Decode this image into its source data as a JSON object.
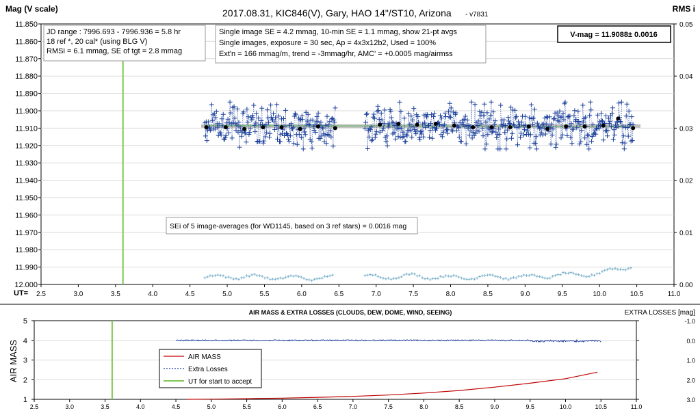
{
  "top": {
    "title": "2017.08.31,  KIC846(V),  Gary,  HAO 14\"/ST10, Arizona",
    "version": "- v7831",
    "ylabel_left": "Mag (V scale)",
    "ylabel_right": "RMS i",
    "xlabel_prefix": "UT=",
    "x_ticks": [
      "2.5",
      "3.0",
      "3.5",
      "4.0",
      "4.5",
      "5.0",
      "5.5",
      "6.0",
      "6.5",
      "7.0",
      "7.5",
      "8.0",
      "8.5",
      "9.0",
      "9.5",
      "10.0",
      "10.5",
      "11.0"
    ],
    "y_ticks": [
      "11.850",
      "11.860",
      "11.870",
      "11.880",
      "11.890",
      "11.900",
      "11.910",
      "11.920",
      "11.930",
      "11.940",
      "11.950",
      "11.960",
      "11.970",
      "11.980",
      "11.990",
      "12.000"
    ],
    "y_right_ticks": [
      "0.05",
      "0.04",
      "0.03",
      "0.02",
      "0.01",
      "0.00"
    ],
    "info_left": [
      "JD range : 7996.693 - 7996.936 =  5.8  hr",
      "18 ref *, 20 cal* (using BLG V)",
      "RMSi = 6.1 mmag, SE of tgt = 2.8 mmag"
    ],
    "info_mid": [
      "Single image SE = 4.2 mmag, 10-min SE = 1.1 mmag, show 21-pt avgs",
      "Single images, exposure = 30 sec, Ap = 4x3x12b2, Used = 100%",
      "Ext'n = 166 mmag/m, trend = -3mmag/hr, AMC' = +0.0005 mag/airmss"
    ],
    "vmag": "V-mag = 11.9088± 0.0016",
    "sei_note": "SEi of 5 image-averages (for WD1145, based on 3 ref stars) = 0.0016 mag",
    "colors": {
      "points": "#1a3f9a",
      "avg": "#000000",
      "rms": "#7fb3cc",
      "trend_gray": "#bdbdbd",
      "trend_green": "#7fbf7f",
      "start_line": "#7ec850"
    }
  },
  "bottom": {
    "title": "AIR MASS & EXTRA LOSSES (CLOUDS, DEW, DOME, WIND, SEEING)",
    "ylabel_left": "AIR MASS",
    "ylabel_right": "EXTRA LOSSES [mag]",
    "x_ticks": [
      "2.5",
      "3.0",
      "3.5",
      "4.0",
      "4.5",
      "5.0",
      "5.5",
      "6.0",
      "6.5",
      "7.0",
      "7.5",
      "8.0",
      "8.5",
      "9.0",
      "9.5",
      "10.0",
      "10.5",
      "11.0"
    ],
    "y_ticks": [
      "5",
      "4",
      "3",
      "2",
      "1"
    ],
    "y_right_ticks": [
      "-1.0",
      "0.0",
      "1.0",
      "2.0",
      "3.0"
    ],
    "legend": [
      "AIR MASS",
      "Extra Losses",
      "UT for start to accept"
    ],
    "colors": {
      "airmass": "#c00000",
      "losses": "#1f3fa0",
      "start_line": "#7ec850"
    }
  },
  "chart_data": [
    {
      "type": "scatter",
      "title": "2017.08.31,  KIC846(V),  Gary,  HAO 14\"/ST10, Arizona",
      "xlabel": "UT",
      "ylabel": "Mag (V scale)",
      "ylabel_right": "RMS i",
      "xlim": [
        2.5,
        11.0
      ],
      "ylim": [
        11.85,
        12.0
      ],
      "y_inverted": true,
      "ylim_right": [
        0.0,
        0.05
      ],
      "start_line_ut": 3.6,
      "observed_ranges": [
        [
          4.7,
          6.45
        ],
        [
          6.85,
          10.45
        ]
      ],
      "mean_mag": 11.9088,
      "scatter_sd": 0.006,
      "series": [
        {
          "name": "21-pt avgs",
          "x": [
            4.72,
            4.98,
            5.23,
            5.48,
            5.73,
            5.98,
            6.22,
            6.45,
            7.05,
            7.3,
            7.55,
            7.8,
            8.05,
            8.3,
            8.55,
            8.8,
            9.05,
            9.3,
            9.55,
            9.8,
            10.05,
            10.25,
            10.45
          ],
          "y": [
            11.9095,
            11.9095,
            11.9105,
            11.9095,
            11.9095,
            11.9105,
            11.909,
            11.91,
            11.908,
            11.9075,
            11.908,
            11.9075,
            11.9085,
            11.9095,
            11.9095,
            11.9095,
            11.909,
            11.9105,
            11.909,
            11.909,
            11.9085,
            11.9045,
            11.91
          ]
        },
        {
          "name": "RMS i",
          "axis": "right",
          "x": [
            4.65,
            5.0,
            5.5,
            6.0,
            6.45,
            6.9,
            7.5,
            8.0,
            8.5,
            9.0,
            9.5,
            10.0,
            10.2,
            10.45
          ],
          "y": [
            0.0013,
            0.0015,
            0.0014,
            0.0012,
            0.0014,
            0.0014,
            0.0016,
            0.0013,
            0.0015,
            0.0014,
            0.0018,
            0.002,
            0.003,
            0.0035
          ]
        }
      ],
      "annotations": [
        "V-mag = 11.9088± 0.0016",
        "SEi of 5 image-averages (for WD1145, based on 3 ref stars) = 0.0016 mag"
      ]
    },
    {
      "type": "line",
      "title": "AIR MASS & EXTRA LOSSES (CLOUDS, DEW, DOME, WIND, SEEING)",
      "xlabel": "UT",
      "ylabel": "AIR MASS",
      "ylabel_right": "EXTRA LOSSES [mag]",
      "xlim": [
        2.5,
        11.0
      ],
      "ylim": [
        1,
        5
      ],
      "ylim_right": [
        -1.0,
        3.0
      ],
      "y_right_inverted": true,
      "start_line_ut": 3.6,
      "series": [
        {
          "name": "AIR MASS",
          "x": [
            4.65,
            5.0,
            5.5,
            6.0,
            6.5,
            7.0,
            7.5,
            8.0,
            8.5,
            9.0,
            9.5,
            10.0,
            10.45
          ],
          "y": [
            1.0,
            1.01,
            1.03,
            1.06,
            1.1,
            1.15,
            1.22,
            1.32,
            1.45,
            1.62,
            1.82,
            2.05,
            2.38
          ]
        },
        {
          "name": "Extra Losses",
          "axis": "right",
          "x": [
            4.5,
            10.5
          ],
          "y": [
            0.0,
            0.0
          ]
        },
        {
          "name": "UT for start to accept",
          "x": [
            3.6,
            3.6
          ],
          "y": [
            1,
            5
          ]
        }
      ]
    }
  ]
}
